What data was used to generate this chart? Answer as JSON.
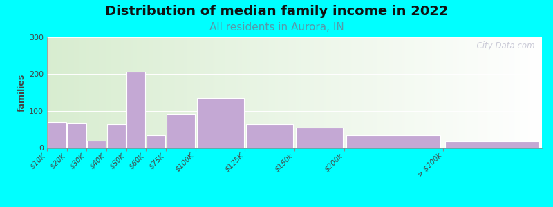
{
  "title": "Distribution of median family income in 2022",
  "subtitle": "All residents in Aurora, IN",
  "ylabel": "families",
  "background_outer": "#00FFFF",
  "bar_color": "#C4A8D4",
  "categories": [
    "$10K",
    "$20K",
    "$30K",
    "$40K",
    "$50K",
    "$60K",
    "$75K",
    "$100K",
    "$125K",
    "$150k",
    "$200k",
    "> $200k"
  ],
  "values": [
    70,
    68,
    20,
    65,
    207,
    35,
    93,
    135,
    65,
    55,
    35,
    18
  ],
  "ylim": [
    0,
    300
  ],
  "yticks": [
    0,
    100,
    200,
    300
  ],
  "plot_bg_left": "#D8EDD0",
  "plot_bg_right": "#FFFFFF",
  "title_fontsize": 14,
  "subtitle_fontsize": 11,
  "title_color": "#111111",
  "subtitle_color": "#5599AA",
  "watermark_text": "  City-Data.com",
  "widths": [
    10,
    10,
    10,
    10,
    10,
    10,
    15,
    25,
    25,
    25,
    50,
    50
  ]
}
